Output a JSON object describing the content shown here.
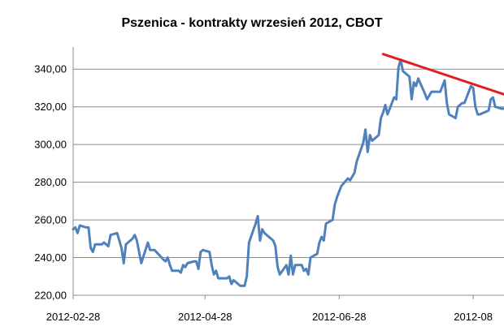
{
  "chart_data": {
    "type": "line",
    "title": "Pszenica - kontrakty wrzesień 2012, CBOT",
    "xlabel": "",
    "ylabel": "",
    "ylim": [
      220,
      350
    ],
    "yticks": [
      "220,00",
      "240,00",
      "260,00",
      "280,00",
      "300,00",
      "320,00",
      "340,00"
    ],
    "ytick_values": [
      220,
      240,
      260,
      280,
      300,
      320,
      340
    ],
    "xticks": [
      "2012-02-28",
      "2012-04-28",
      "2012-06-28",
      "2012-08"
    ],
    "xtick_values": [
      "2012-02-28",
      "2012-04-28",
      "2012-06-28",
      "2012-08-28"
    ],
    "xlim": [
      "2012-02-28",
      "2012-09-11"
    ],
    "grid": true,
    "legend": "none",
    "series": [
      {
        "color": "#4f81bd",
        "x": [
          "2012-02-28",
          "2012-02-29",
          "2012-03-01",
          "2012-03-02",
          "2012-03-05",
          "2012-03-06",
          "2012-03-07",
          "2012-03-08",
          "2012-03-09",
          "2012-03-12",
          "2012-03-13",
          "2012-03-14",
          "2012-03-15",
          "2012-03-16",
          "2012-03-19",
          "2012-03-20",
          "2012-03-21",
          "2012-03-22",
          "2012-03-23",
          "2012-03-26",
          "2012-03-27",
          "2012-03-28",
          "2012-03-29",
          "2012-03-30",
          "2012-04-02",
          "2012-04-03",
          "2012-04-04",
          "2012-04-05",
          "2012-04-09",
          "2012-04-10",
          "2012-04-11",
          "2012-04-12",
          "2012-04-13",
          "2012-04-16",
          "2012-04-17",
          "2012-04-18",
          "2012-04-19",
          "2012-04-20",
          "2012-04-23",
          "2012-04-24",
          "2012-04-25",
          "2012-04-26",
          "2012-04-27",
          "2012-04-30",
          "2012-05-01",
          "2012-05-02",
          "2012-05-03",
          "2012-05-04",
          "2012-05-07",
          "2012-05-08",
          "2012-05-09",
          "2012-05-10",
          "2012-05-11",
          "2012-05-14",
          "2012-05-15",
          "2012-05-16",
          "2012-05-17",
          "2012-05-18",
          "2012-05-21",
          "2012-05-22",
          "2012-05-23",
          "2012-05-24",
          "2012-05-25",
          "2012-05-29",
          "2012-05-30",
          "2012-05-31",
          "2012-06-01",
          "2012-06-04",
          "2012-06-05",
          "2012-06-06",
          "2012-06-07",
          "2012-06-08",
          "2012-06-11",
          "2012-06-12",
          "2012-06-13",
          "2012-06-14",
          "2012-06-15",
          "2012-06-18",
          "2012-06-19",
          "2012-06-20",
          "2012-06-21",
          "2012-06-22",
          "2012-06-25",
          "2012-06-26",
          "2012-06-27",
          "2012-06-28",
          "2012-06-29",
          "2012-07-02",
          "2012-07-03",
          "2012-07-05",
          "2012-07-06",
          "2012-07-09",
          "2012-07-10",
          "2012-07-11",
          "2012-07-12",
          "2012-07-13",
          "2012-07-16",
          "2012-07-17",
          "2012-07-18",
          "2012-07-19",
          "2012-07-20",
          "2012-07-23",
          "2012-07-24",
          "2012-07-25",
          "2012-07-26",
          "2012-07-27",
          "2012-07-30",
          "2012-07-31",
          "2012-08-01",
          "2012-08-02",
          "2012-08-03",
          "2012-08-06",
          "2012-08-07",
          "2012-08-08",
          "2012-08-09",
          "2012-08-10",
          "2012-08-13",
          "2012-08-14",
          "2012-08-15",
          "2012-08-16",
          "2012-08-17",
          "2012-08-20",
          "2012-08-21",
          "2012-08-22",
          "2012-08-23",
          "2012-08-24",
          "2012-08-27",
          "2012-08-28",
          "2012-08-29",
          "2012-08-30",
          "2012-08-31",
          "2012-09-04",
          "2012-09-05",
          "2012-09-06",
          "2012-09-07",
          "2012-09-10",
          "2012-09-11"
        ],
        "values": [
          255,
          256,
          253,
          257,
          256,
          256,
          245,
          243,
          247,
          247,
          248,
          247,
          246,
          252,
          253,
          249,
          245,
          237,
          247,
          250,
          252,
          249,
          243,
          237,
          248,
          244,
          244,
          244,
          239,
          238,
          240,
          236,
          233,
          233,
          232,
          236,
          235,
          237,
          238,
          238,
          234,
          243,
          244,
          243,
          236,
          231,
          233,
          229,
          229,
          229,
          230,
          226,
          228,
          225,
          225,
          225,
          230,
          248,
          258,
          262,
          249,
          255,
          253,
          249,
          246,
          235,
          231,
          236,
          231,
          241,
          231,
          236,
          236,
          233,
          234,
          231,
          240,
          242,
          248,
          251,
          249,
          258,
          260,
          268,
          272,
          275,
          278,
          282,
          281,
          285,
          291,
          301,
          308,
          296,
          305,
          302,
          305,
          314,
          317,
          321,
          316,
          325,
          324,
          341,
          345,
          339,
          336,
          324,
          333,
          331,
          335,
          327,
          324,
          326,
          328,
          328,
          328,
          331,
          334,
          322,
          316,
          314,
          320,
          321,
          322,
          322,
          331,
          330,
          320,
          316,
          316,
          318,
          324,
          325,
          320,
          319,
          319
        ]
      }
    ],
    "annotations": [
      {
        "type": "trend_line",
        "color": "#e02020",
        "from": [
          "2012-07-18",
          348
        ],
        "to": [
          "2012-09-11",
          326.6
        ]
      }
    ]
  }
}
